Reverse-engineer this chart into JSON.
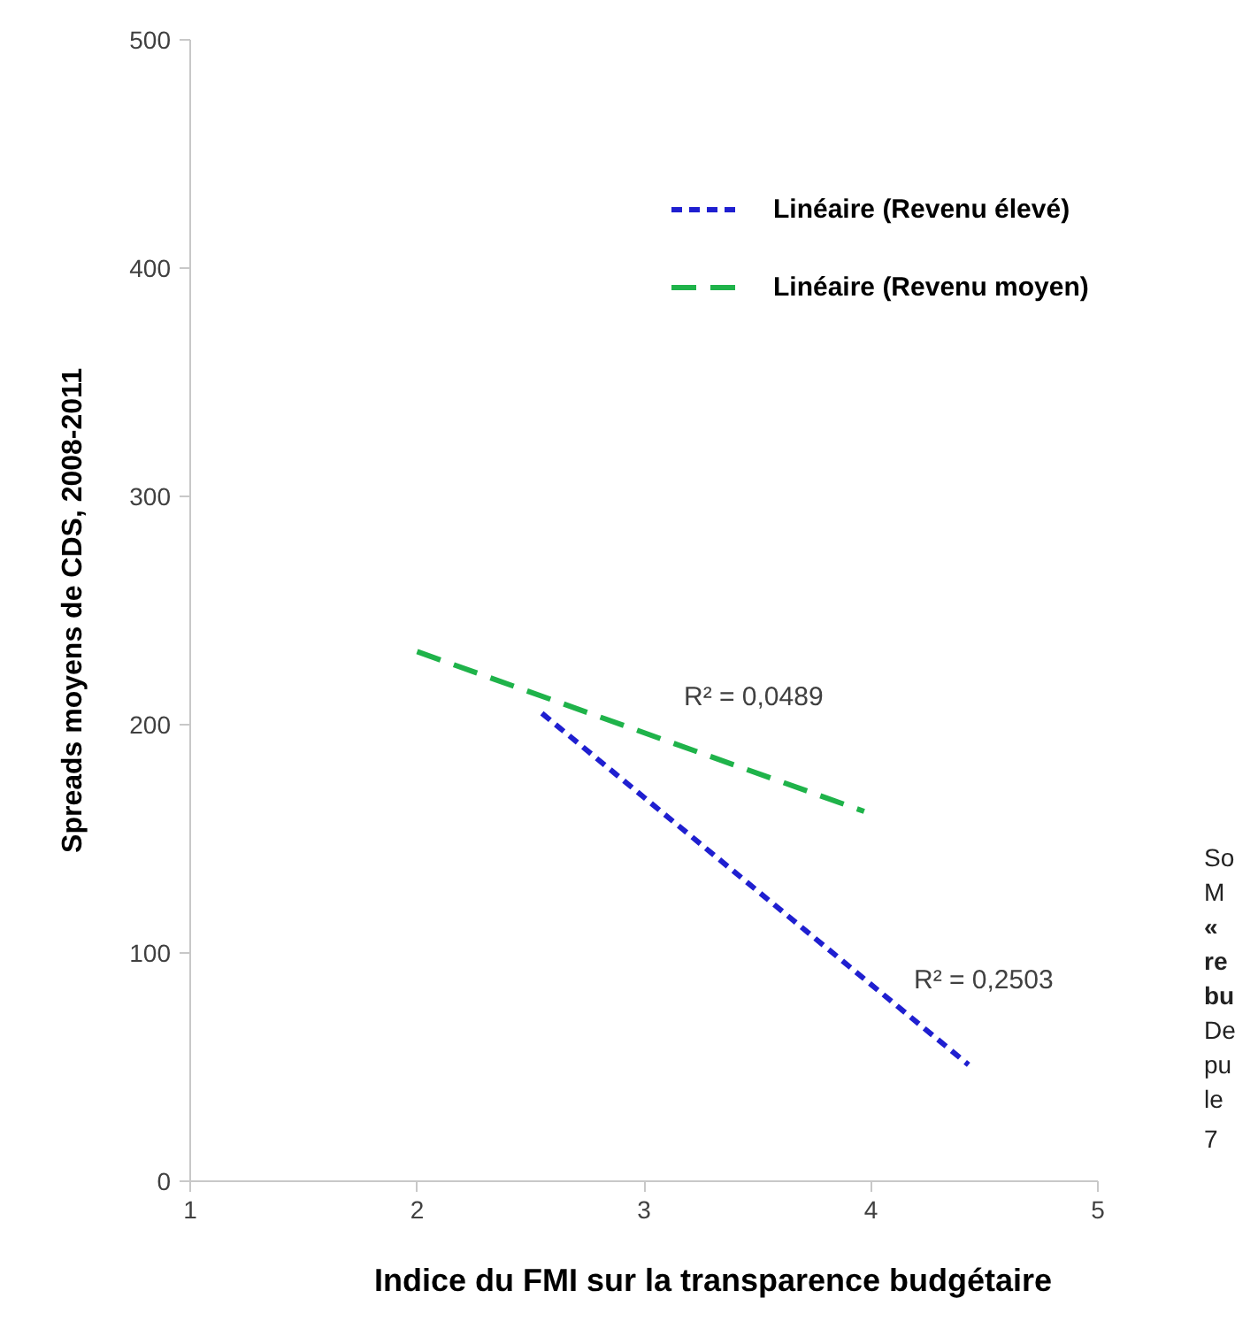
{
  "chart_data": {
    "type": "line",
    "xlabel": "Indice du FMI sur la transparence budgétaire",
    "ylabel": "Spreads moyens de CDS, 2008-2011",
    "xlim": [
      1,
      5
    ],
    "xticks": [
      1,
      2,
      3,
      4,
      5
    ],
    "ylim": [
      0,
      500
    ],
    "yticks": [
      0,
      100,
      200,
      300,
      400,
      500
    ],
    "grid": false,
    "legend": "top right",
    "marker": "none",
    "series": [
      {
        "name": "Linéaire (Revenu élevé)",
        "color": "#1f1fd0",
        "x": [
          2.55,
          4.43
        ],
        "values": [
          205,
          51
        ],
        "line_style": "dotted"
      },
      {
        "name": "Linéaire (Revenu moyen)",
        "color": "#1fb34a",
        "x": [
          2,
          3.97
        ],
        "values": [
          232,
          162
        ],
        "line_style": "dashed"
      }
    ],
    "annotations": [
      "R² = 0,0489",
      "R² = 0,2503",
      "So",
      "M",
      "«",
      "re",
      "bu",
      "De",
      "pu",
      "le",
      "7"
    ]
  }
}
